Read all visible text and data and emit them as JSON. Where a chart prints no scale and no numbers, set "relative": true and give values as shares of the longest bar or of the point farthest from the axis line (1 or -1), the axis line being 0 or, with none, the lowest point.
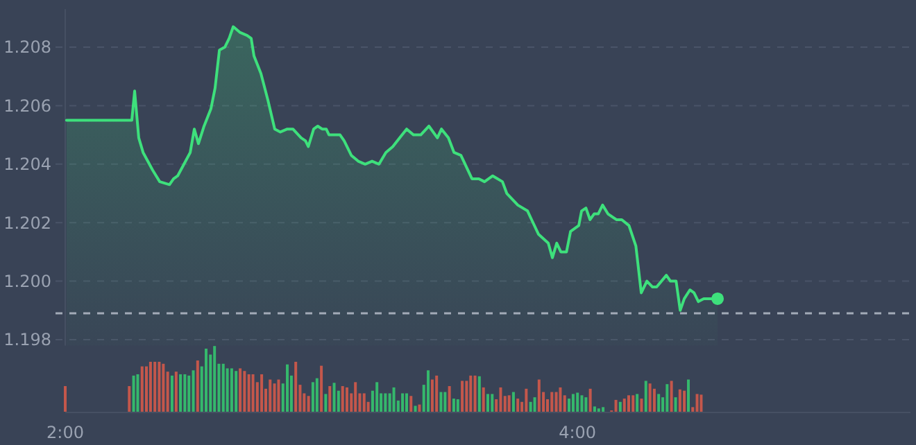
{
  "chart_data": [
    {
      "type": "area",
      "xlim": [
        2,
        5.3
      ],
      "ylim": [
        1.1978,
        1.2093
      ],
      "yticks": [
        {
          "value": 1.198,
          "label": "1.198"
        },
        {
          "value": 1.2,
          "label": "1.200"
        },
        {
          "value": 1.202,
          "label": "1.202"
        },
        {
          "value": 1.204,
          "label": "1.204"
        },
        {
          "value": 1.206,
          "label": "1.206"
        },
        {
          "value": 1.208,
          "label": "1.208"
        }
      ],
      "grid": "y",
      "tick_labels": "y",
      "ref_lines": [
        {
          "axis": "y",
          "value": 1.1989,
          "color": "#a3abb8",
          "line_style": "dashed"
        }
      ],
      "series": [
        {
          "color": "#3ee07c",
          "x": [
            2.005,
            2.26,
            2.271,
            2.287,
            2.304,
            2.341,
            2.369,
            2.407,
            2.423,
            2.439,
            2.488,
            2.504,
            2.52,
            2.542,
            2.569,
            2.585,
            2.602,
            2.623,
            2.64,
            2.656,
            2.683,
            2.71,
            2.726,
            2.737,
            2.764,
            2.791,
            2.818,
            2.84,
            2.867,
            2.889,
            2.921,
            2.938,
            2.949,
            2.97,
            2.986,
            3.003,
            3.019,
            3.03,
            3.073,
            3.089,
            3.117,
            3.144,
            3.171,
            3.198,
            3.225,
            3.252,
            3.279,
            3.306,
            3.333,
            3.36,
            3.388,
            3.42,
            3.453,
            3.469,
            3.496,
            3.518,
            3.545,
            3.588,
            3.615,
            3.637,
            3.669,
            3.707,
            3.724,
            3.767,
            3.805,
            3.821,
            3.848,
            3.886,
            3.902,
            3.919,
            3.935,
            3.957,
            3.973,
            4.005,
            4.016,
            4.033,
            4.049,
            4.065,
            4.081,
            4.098,
            4.119,
            4.152,
            4.173,
            4.201,
            4.228,
            4.249,
            4.271,
            4.293,
            4.309,
            4.347,
            4.363,
            4.385,
            4.401,
            4.417,
            4.439,
            4.455,
            4.472,
            4.493,
            4.547
          ],
          "values": [
            1.2055,
            1.2055,
            1.2065,
            1.2049,
            1.2044,
            1.2038,
            1.2034,
            1.2033,
            1.2035,
            1.2036,
            1.2044,
            1.2052,
            1.2047,
            1.2053,
            1.2059,
            1.2066,
            1.2079,
            1.208,
            1.2083,
            1.2087,
            1.2085,
            1.2084,
            1.2083,
            1.2077,
            1.2071,
            1.2062,
            1.2052,
            1.2051,
            1.2052,
            1.2052,
            1.2049,
            1.2048,
            1.2046,
            1.2052,
            1.2053,
            1.2052,
            1.2052,
            1.205,
            1.205,
            1.2048,
            1.2043,
            1.2041,
            1.204,
            1.2041,
            1.204,
            1.2044,
            1.2046,
            1.2049,
            1.2052,
            1.205,
            1.205,
            1.2053,
            1.2049,
            1.2052,
            1.2049,
            1.2044,
            1.2043,
            1.2035,
            1.2035,
            1.2034,
            1.2036,
            1.2034,
            1.203,
            1.2026,
            1.2024,
            1.2021,
            1.2016,
            1.2013,
            1.2008,
            1.2013,
            1.201,
            1.201,
            1.2017,
            1.2019,
            1.2024,
            1.2025,
            1.2021,
            1.2023,
            1.2023,
            1.2026,
            1.2023,
            1.2021,
            1.2021,
            1.2019,
            1.2012,
            1.1996,
            1.2,
            1.1998,
            1.1998,
            1.2002,
            1.2,
            1.2,
            1.199,
            1.1994,
            1.1997,
            1.1996,
            1.1993,
            1.1994,
            1.1994
          ]
        },
        {
          "type": "scatter",
          "marker": "circle",
          "color": "#3ee07c",
          "x": [
            4.547
          ],
          "values": [
            1.1994
          ]
        }
      ]
    },
    {
      "type": "bar",
      "relative": true,
      "xlim": [
        2,
        5.3
      ],
      "xticks": [
        {
          "value": 2,
          "label": "2:00"
        },
        {
          "value": 4,
          "label": "4:00"
        }
      ],
      "tick_labels": "x",
      "x": [
        2,
        2.25,
        2.267,
        2.283,
        2.3,
        2.317,
        2.333,
        2.35,
        2.367,
        2.383,
        2.4,
        2.417,
        2.433,
        2.45,
        2.467,
        2.483,
        2.5,
        2.517,
        2.533,
        2.55,
        2.567,
        2.583,
        2.6,
        2.617,
        2.633,
        2.65,
        2.667,
        2.683,
        2.7,
        2.717,
        2.733,
        2.75,
        2.767,
        2.783,
        2.8,
        2.817,
        2.833,
        2.85,
        2.867,
        2.883,
        2.9,
        2.917,
        2.933,
        2.95,
        2.967,
        2.983,
        3,
        3.017,
        3.033,
        3.05,
        3.067,
        3.083,
        3.1,
        3.117,
        3.133,
        3.15,
        3.167,
        3.183,
        3.2,
        3.217,
        3.233,
        3.25,
        3.267,
        3.283,
        3.3,
        3.317,
        3.333,
        3.35,
        3.367,
        3.383,
        3.4,
        3.417,
        3.433,
        3.45,
        3.467,
        3.483,
        3.5,
        3.517,
        3.533,
        3.55,
        3.567,
        3.583,
        3.6,
        3.617,
        3.633,
        3.65,
        3.667,
        3.683,
        3.7,
        3.717,
        3.733,
        3.75,
        3.767,
        3.783,
        3.8,
        3.817,
        3.833,
        3.85,
        3.867,
        3.883,
        3.9,
        3.917,
        3.933,
        3.95,
        3.967,
        3.983,
        4,
        4.017,
        4.033,
        4.05,
        4.067,
        4.083,
        4.1,
        4.133,
        4.15,
        4.167,
        4.183,
        4.2,
        4.217,
        4.233,
        4.25,
        4.267,
        4.283,
        4.3,
        4.317,
        4.333,
        4.35,
        4.367,
        4.383,
        4.4,
        4.417,
        4.433,
        4.45,
        4.467,
        4.483
      ],
      "values": [
        0.39,
        0.39,
        0.55,
        0.57,
        0.69,
        0.69,
        0.76,
        0.76,
        0.76,
        0.73,
        0.61,
        0.55,
        0.61,
        0.57,
        0.57,
        0.55,
        0.63,
        0.78,
        0.69,
        0.96,
        0.87,
        1,
        0.73,
        0.73,
        0.66,
        0.66,
        0.62,
        0.66,
        0.62,
        0.57,
        0.57,
        0.45,
        0.57,
        0.35,
        0.49,
        0.43,
        0.49,
        0.43,
        0.72,
        0.55,
        0.76,
        0.41,
        0.28,
        0.24,
        0.45,
        0.51,
        0.7,
        0.27,
        0.39,
        0.44,
        0.32,
        0.39,
        0.37,
        0.28,
        0.45,
        0.28,
        0.28,
        0.15,
        0.32,
        0.45,
        0.28,
        0.28,
        0.28,
        0.37,
        0.17,
        0.28,
        0.28,
        0.24,
        0.09,
        0.11,
        0.41,
        0.63,
        0.49,
        0.55,
        0.3,
        0.3,
        0.39,
        0.2,
        0.19,
        0.47,
        0.47,
        0.55,
        0.55,
        0.54,
        0.37,
        0.27,
        0.27,
        0.19,
        0.37,
        0.24,
        0.25,
        0.3,
        0.2,
        0.15,
        0.35,
        0.15,
        0.22,
        0.49,
        0.3,
        0.19,
        0.3,
        0.3,
        0.37,
        0.25,
        0.2,
        0.27,
        0.29,
        0.25,
        0.22,
        0.35,
        0.08,
        0.05,
        0.07,
        0.02,
        0.18,
        0.15,
        0.2,
        0.25,
        0.25,
        0.27,
        0.2,
        0.47,
        0.43,
        0.35,
        0.27,
        0.22,
        0.42,
        0.47,
        0.22,
        0.34,
        0.32,
        0.49,
        0.07,
        0.27,
        0.26
      ],
      "colors": [
        "#c4574b",
        "#c4574b",
        "#35b86c",
        "#35b86c",
        "#c4574b",
        "#c4574b",
        "#c4574b",
        "#c4574b",
        "#c4574b",
        "#c4574b",
        "#c4574b",
        "#35b86c",
        "#c4574b",
        "#35b86c",
        "#35b86c",
        "#35b86c",
        "#35b86c",
        "#c4574b",
        "#35b86c",
        "#35b86c",
        "#35b86c",
        "#35b86c",
        "#35b86c",
        "#35b86c",
        "#35b86c",
        "#35b86c",
        "#35b86c",
        "#c4574b",
        "#c4574b",
        "#c4574b",
        "#c4574b",
        "#c4574b",
        "#c4574b",
        "#c4574b",
        "#c4574b",
        "#c4574b",
        "#c4574b",
        "#35b86c",
        "#35b86c",
        "#35b86c",
        "#c4574b",
        "#c4574b",
        "#c4574b",
        "#c4574b",
        "#35b86c",
        "#35b86c",
        "#c4574b",
        "#35b86c",
        "#c4574b",
        "#35b86c",
        "#35b86c",
        "#c4574b",
        "#c4574b",
        "#c4574b",
        "#c4574b",
        "#c4574b",
        "#c4574b",
        "#c4574b",
        "#35b86c",
        "#35b86c",
        "#35b86c",
        "#35b86c",
        "#35b86c",
        "#35b86c",
        "#35b86c",
        "#35b86c",
        "#35b86c",
        "#c4574b",
        "#35b86c",
        "#c4574b",
        "#35b86c",
        "#35b86c",
        "#c4574b",
        "#c4574b",
        "#35b86c",
        "#35b86c",
        "#c4574b",
        "#35b86c",
        "#35b86c",
        "#c4574b",
        "#c4574b",
        "#c4574b",
        "#c4574b",
        "#35b86c",
        "#c4574b",
        "#35b86c",
        "#35b86c",
        "#c4574b",
        "#c4574b",
        "#c4574b",
        "#c4574b",
        "#35b86c",
        "#c4574b",
        "#c4574b",
        "#c4574b",
        "#35b86c",
        "#35b86c",
        "#c4574b",
        "#c4574b",
        "#c4574b",
        "#c4574b",
        "#c4574b",
        "#c4574b",
        "#c4574b",
        "#35b86c",
        "#35b86c",
        "#35b86c",
        "#35b86c",
        "#35b86c",
        "#c4574b",
        "#35b86c",
        "#35b86c",
        "#35b86c",
        "#c4574b",
        "#c4574b",
        "#35b86c",
        "#c4574b",
        "#c4574b",
        "#c4574b",
        "#35b86c",
        "#c4574b",
        "#35b86c",
        "#c4574b",
        "#c4574b",
        "#35b86c",
        "#35b86c",
        "#35b86c",
        "#c4574b",
        "#35b86c",
        "#c4574b",
        "#c4574b",
        "#35b86c",
        "#c4574b",
        "#c4574b",
        "#c4574b"
      ]
    }
  ]
}
